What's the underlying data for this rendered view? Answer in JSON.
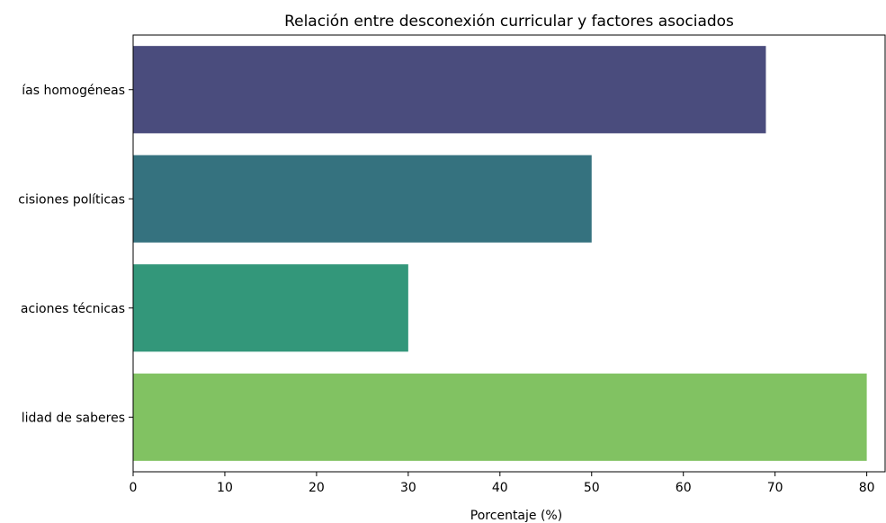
{
  "chart_data": {
    "type": "bar",
    "orientation": "horizontal",
    "title": "Relación entre desconexión curricular y factores asociados",
    "xlabel": "Porcentaje (%)",
    "ylabel": "",
    "categories": [
      "ías homogéneas",
      "cisiones políticas",
      "aciones técnicas",
      "lidad de saberes"
    ],
    "values": [
      69,
      50,
      30,
      80
    ],
    "colors": [
      "#4a4c7d",
      "#35727f",
      "#33977a",
      "#81c262"
    ],
    "xlim": [
      0,
      82
    ],
    "xticks": [
      0,
      10,
      20,
      30,
      40,
      50,
      60,
      70,
      80
    ],
    "grid": false,
    "legend": "none"
  }
}
